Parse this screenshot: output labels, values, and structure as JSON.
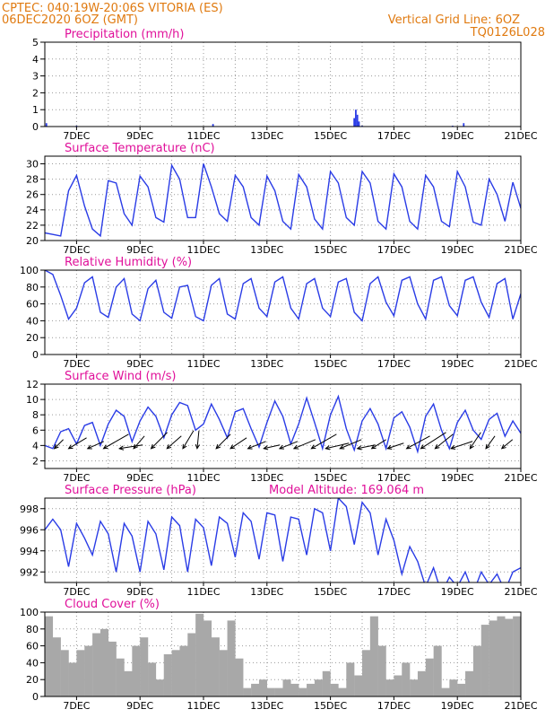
{
  "header": {
    "line1_left": "CPTEC:   040:19W-20:06S  VITORIA (ES)",
    "line2_left": "06DEC2020 6OZ (GMT)",
    "line1_right": "Vertical Grid Line: 6OZ",
    "line2_right": "TQ0126L028"
  },
  "colors": {
    "header": "#e07a10",
    "title": "#e0109a",
    "line": "#2a3ce6",
    "cloud": "#a8a8a8",
    "arrow": "#000000"
  },
  "x_axis": {
    "start_day": 6,
    "end_day": 21,
    "tick_labels": [
      "7DEC",
      "9DEC",
      "11DEC",
      "13DEC",
      "15DEC",
      "17DEC",
      "19DEC",
      "21DEC"
    ]
  },
  "chart_data": [
    {
      "type": "bar",
      "title": "Precipitation (mm/h)",
      "ylim": [
        0,
        5
      ],
      "yticks": [
        "0",
        "1",
        "2",
        "3",
        "4",
        "5"
      ],
      "grid": true,
      "x": [
        6.05,
        7.0,
        11.3,
        15.75,
        15.8,
        15.85,
        15.9,
        16.0,
        18.85,
        19.2
      ],
      "values": [
        0.2,
        0.05,
        0.15,
        0.5,
        1.0,
        0.7,
        0.3,
        0.05,
        0.05,
        0.2
      ]
    },
    {
      "type": "line",
      "title": "Surface Temperature (nC)",
      "ylim": [
        20,
        31
      ],
      "yticks": [
        "20",
        "22",
        "24",
        "26",
        "28",
        "30"
      ],
      "grid": true,
      "series": [
        {
          "x": [
            6.0,
            6.25,
            6.5,
            6.75,
            7.0,
            7.25,
            7.5,
            7.75,
            8.0,
            8.25,
            8.5,
            8.75,
            9.0,
            9.25,
            9.5,
            9.75,
            10.0,
            10.25,
            10.5,
            10.75,
            11.0,
            11.25,
            11.5,
            11.75,
            12.0,
            12.25,
            12.5,
            12.75,
            13.0,
            13.25,
            13.5,
            13.75,
            14.0,
            14.25,
            14.5,
            14.75,
            15.0,
            15.25,
            15.5,
            15.75,
            16.0,
            16.25,
            16.5,
            16.75,
            17.0,
            17.25,
            17.5,
            17.75,
            18.0,
            18.25,
            18.5,
            18.75,
            19.0,
            19.25,
            19.5,
            19.75,
            20.0,
            20.25,
            20.5,
            20.75,
            21.0
          ],
          "values": [
            21.0,
            20.8,
            20.6,
            26.5,
            28.5,
            24.5,
            21.5,
            20.6,
            27.8,
            27.5,
            23.5,
            22.0,
            28.4,
            27.0,
            23.0,
            22.4,
            29.8,
            28.0,
            23.0,
            23.0,
            30.0,
            27.0,
            23.5,
            22.5,
            28.5,
            27.0,
            23.0,
            22.0,
            28.4,
            26.5,
            22.5,
            21.5,
            28.6,
            27.0,
            22.8,
            21.5,
            29.0,
            27.5,
            23.0,
            22.0,
            29.0,
            27.5,
            22.5,
            21.5,
            28.7,
            27.0,
            22.5,
            21.5,
            28.5,
            27.0,
            22.5,
            21.8,
            29.0,
            27.0,
            22.4,
            22.0,
            28.0,
            26.0,
            22.5,
            27.6,
            24.2
          ]
        }
      ]
    },
    {
      "type": "line",
      "title": "Relative Humidity (%)",
      "ylim": [
        0,
        100
      ],
      "yticks": [
        "0",
        "20",
        "40",
        "60",
        "80",
        "100"
      ],
      "grid": true,
      "series": [
        {
          "x": [
            6.0,
            6.25,
            6.5,
            6.75,
            7.0,
            7.25,
            7.5,
            7.75,
            8.0,
            8.25,
            8.5,
            8.75,
            9.0,
            9.25,
            9.5,
            9.75,
            10.0,
            10.25,
            10.5,
            10.75,
            11.0,
            11.25,
            11.5,
            11.75,
            12.0,
            12.25,
            12.5,
            12.75,
            13.0,
            13.25,
            13.5,
            13.75,
            14.0,
            14.25,
            14.5,
            14.75,
            15.0,
            15.25,
            15.5,
            15.75,
            16.0,
            16.25,
            16.5,
            16.75,
            17.0,
            17.25,
            17.5,
            17.75,
            18.0,
            18.25,
            18.5,
            18.75,
            19.0,
            19.25,
            19.5,
            19.75,
            20.0,
            20.25,
            20.5,
            20.75,
            21.0
          ],
          "values": [
            100,
            95,
            70,
            42,
            55,
            85,
            92,
            50,
            44,
            80,
            90,
            48,
            40,
            78,
            88,
            50,
            43,
            80,
            82,
            45,
            40,
            82,
            90,
            48,
            42,
            84,
            90,
            55,
            45,
            86,
            92,
            55,
            42,
            84,
            90,
            55,
            45,
            86,
            90,
            50,
            40,
            84,
            92,
            62,
            46,
            88,
            92,
            60,
            42,
            88,
            92,
            58,
            46,
            88,
            92,
            62,
            44,
            84,
            90,
            42,
            72
          ]
        }
      ]
    },
    {
      "type": "line",
      "title": "Surface Wind (m/s)",
      "ylim": [
        1,
        12
      ],
      "yticks": [
        "2",
        "4",
        "6",
        "8",
        "10",
        "12"
      ],
      "grid": true,
      "series": [
        {
          "x": [
            6.0,
            6.25,
            6.5,
            6.75,
            7.0,
            7.25,
            7.5,
            7.75,
            8.0,
            8.25,
            8.5,
            8.75,
            9.0,
            9.25,
            9.5,
            9.75,
            10.0,
            10.25,
            10.5,
            10.75,
            11.0,
            11.25,
            11.5,
            11.75,
            12.0,
            12.25,
            12.5,
            12.75,
            13.0,
            13.25,
            13.5,
            13.75,
            14.0,
            14.25,
            14.5,
            14.75,
            15.0,
            15.25,
            15.5,
            15.75,
            16.0,
            16.25,
            16.5,
            16.75,
            17.0,
            17.25,
            17.5,
            17.75,
            18.0,
            18.25,
            18.5,
            18.75,
            19.0,
            19.25,
            19.5,
            19.75,
            20.0,
            20.25,
            20.5,
            20.75,
            21.0
          ],
          "values": [
            4.0,
            3.6,
            5.8,
            6.2,
            4.2,
            6.6,
            7.0,
            4.0,
            6.8,
            8.6,
            7.8,
            4.5,
            7.2,
            9.0,
            7.8,
            5.0,
            8.0,
            9.6,
            9.2,
            6.0,
            6.8,
            9.4,
            7.4,
            5.0,
            8.4,
            8.8,
            6.2,
            3.8,
            7.0,
            9.8,
            7.8,
            4.2,
            6.8,
            10.2,
            7.0,
            3.6,
            8.0,
            10.4,
            6.2,
            3.4,
            7.2,
            8.8,
            6.8,
            3.6,
            7.6,
            8.4,
            6.4,
            3.2,
            7.8,
            9.4,
            6.0,
            3.6,
            7.0,
            8.6,
            6.0,
            4.8,
            7.4,
            8.2,
            5.2,
            7.2,
            5.6
          ]
        }
      ],
      "vectors": {
        "x": [
          6.3,
          6.75,
          7.35,
          7.85,
          8.35,
          8.8,
          9.35,
          9.85,
          10.35,
          10.8,
          11.4,
          11.85,
          12.4,
          12.9,
          13.4,
          13.85,
          14.4,
          14.85,
          15.3,
          15.85,
          16.3,
          16.8,
          17.4,
          17.85,
          18.3,
          18.8,
          19.4,
          19.9,
          20.4
        ],
        "u": [
          0.5,
          1.0,
          0.9,
          1.4,
          1.3,
          0.6,
          0.9,
          0.8,
          0.6,
          0.1,
          0.8,
          0.9,
          1.0,
          0.9,
          1.0,
          1.2,
          1.4,
          1.3,
          1.2,
          1.0,
          0.8,
          0.9,
          1.3,
          1.4,
          1.0,
          1.2,
          0.6,
          0.5,
          0.6
        ],
        "v": [
          0.5,
          0.6,
          0.4,
          0.8,
          0.2,
          0.7,
          0.9,
          0.7,
          1.0,
          1.0,
          0.8,
          0.6,
          0.4,
          0.2,
          0.4,
          0.5,
          0.8,
          0.3,
          0.5,
          0.2,
          0.5,
          0.3,
          0.7,
          0.9,
          0.8,
          0.4,
          0.9,
          0.7,
          0.5
        ]
      }
    },
    {
      "type": "line",
      "title": "Surface Pressure (hPa)",
      "subtitle": "Model Altitude: 169.064  m",
      "ylim": [
        991,
        999
      ],
      "yticks": [
        "992",
        "994",
        "996",
        "998"
      ],
      "grid": true,
      "series": [
        {
          "x": [
            6.0,
            6.25,
            6.5,
            6.75,
            7.0,
            7.25,
            7.5,
            7.75,
            8.0,
            8.25,
            8.5,
            8.75,
            9.0,
            9.25,
            9.5,
            9.75,
            10.0,
            10.25,
            10.5,
            10.75,
            11.0,
            11.25,
            11.5,
            11.75,
            12.0,
            12.25,
            12.5,
            12.75,
            13.0,
            13.25,
            13.5,
            13.75,
            14.0,
            14.25,
            14.5,
            14.75,
            15.0,
            15.25,
            15.5,
            15.75,
            16.0,
            16.25,
            16.5,
            16.75,
            17.0,
            17.25,
            17.5,
            17.75,
            18.0,
            18.25,
            18.5,
            18.75,
            19.0,
            19.25,
            19.5,
            19.75,
            20.0,
            20.25,
            20.5,
            20.75,
            21.0
          ],
          "values": [
            996.0,
            997.0,
            996.0,
            992.5,
            996.6,
            995.2,
            993.6,
            996.8,
            995.6,
            992.0,
            996.6,
            995.4,
            992.0,
            996.8,
            995.6,
            992.2,
            997.2,
            996.4,
            992.0,
            997.0,
            996.2,
            992.6,
            997.2,
            996.6,
            993.4,
            997.6,
            996.8,
            993.2,
            997.6,
            997.4,
            993.0,
            997.2,
            997.0,
            993.6,
            998.0,
            997.6,
            994.0,
            999.0,
            998.2,
            994.6,
            998.6,
            997.6,
            993.6,
            997.0,
            995.0,
            991.8,
            994.4,
            993.0,
            990.6,
            992.4,
            990.0,
            991.5,
            990.6,
            992.0,
            990.0,
            992.0,
            990.8,
            991.8,
            990.2,
            992.0,
            992.4
          ]
        }
      ]
    },
    {
      "type": "bar",
      "title": "Cloud Cover (%)",
      "ylim": [
        0,
        100
      ],
      "yticks": [
        "0",
        "20",
        "40",
        "60",
        "80",
        "100"
      ],
      "grid": true,
      "x": [
        6.0,
        6.25,
        6.5,
        6.75,
        7.0,
        7.25,
        7.5,
        7.75,
        8.0,
        8.25,
        8.5,
        8.75,
        9.0,
        9.25,
        9.5,
        9.75,
        10.0,
        10.25,
        10.5,
        10.75,
        11.0,
        11.25,
        11.5,
        11.75,
        12.0,
        12.25,
        12.5,
        12.75,
        13.0,
        13.25,
        13.5,
        13.75,
        14.0,
        14.25,
        14.5,
        14.75,
        15.0,
        15.25,
        15.5,
        15.75,
        16.0,
        16.25,
        16.5,
        16.75,
        17.0,
        17.25,
        17.5,
        17.75,
        18.0,
        18.25,
        18.5,
        18.75,
        19.0,
        19.25,
        19.5,
        19.75,
        20.0,
        20.25,
        20.5,
        20.75
      ],
      "values": [
        95,
        70,
        55,
        40,
        55,
        60,
        75,
        80,
        65,
        45,
        30,
        60,
        70,
        40,
        20,
        50,
        55,
        60,
        75,
        98,
        90,
        70,
        55,
        90,
        45,
        10,
        15,
        20,
        10,
        10,
        20,
        15,
        10,
        15,
        20,
        30,
        15,
        10,
        40,
        25,
        55,
        95,
        60,
        20,
        25,
        40,
        20,
        30,
        45,
        60,
        10,
        20,
        15,
        30,
        60,
        85,
        90,
        95,
        92,
        95
      ]
    }
  ]
}
